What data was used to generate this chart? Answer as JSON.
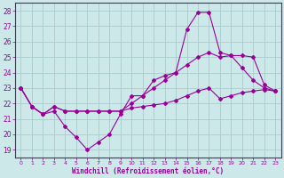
{
  "xlabel": "Windchill (Refroidissement éolien,°C)",
  "xlim": [
    -0.5,
    23.5
  ],
  "ylim": [
    18.5,
    28.5
  ],
  "yticks": [
    19,
    20,
    21,
    22,
    23,
    24,
    25,
    26,
    27,
    28
  ],
  "xticks": [
    0,
    1,
    2,
    3,
    4,
    5,
    6,
    7,
    8,
    9,
    10,
    11,
    12,
    13,
    14,
    15,
    16,
    17,
    18,
    19,
    20,
    21,
    22,
    23
  ],
  "bg_color": "#cce8e8",
  "grid_color": "#aacccc",
  "line_color": "#990099",
  "series1_y": [
    23.0,
    21.8,
    21.3,
    21.5,
    20.5,
    19.8,
    19.0,
    19.5,
    20.0,
    21.3,
    22.5,
    22.5,
    23.5,
    23.8,
    24.0,
    26.8,
    27.9,
    27.9,
    25.3,
    25.1,
    24.3,
    23.5,
    23.0,
    22.8
  ],
  "series2_y": [
    23.0,
    21.8,
    21.3,
    21.8,
    21.5,
    21.5,
    21.5,
    21.5,
    21.5,
    21.5,
    22.0,
    22.5,
    23.0,
    23.5,
    24.0,
    24.5,
    25.0,
    25.3,
    25.0,
    25.1,
    25.1,
    25.0,
    23.2,
    22.8
  ],
  "series3_y": [
    23.0,
    21.8,
    21.3,
    21.8,
    21.5,
    21.5,
    21.5,
    21.5,
    21.5,
    21.5,
    21.7,
    21.8,
    21.9,
    22.0,
    22.2,
    22.5,
    22.8,
    23.0,
    22.3,
    22.5,
    22.7,
    22.8,
    22.9,
    22.8
  ]
}
